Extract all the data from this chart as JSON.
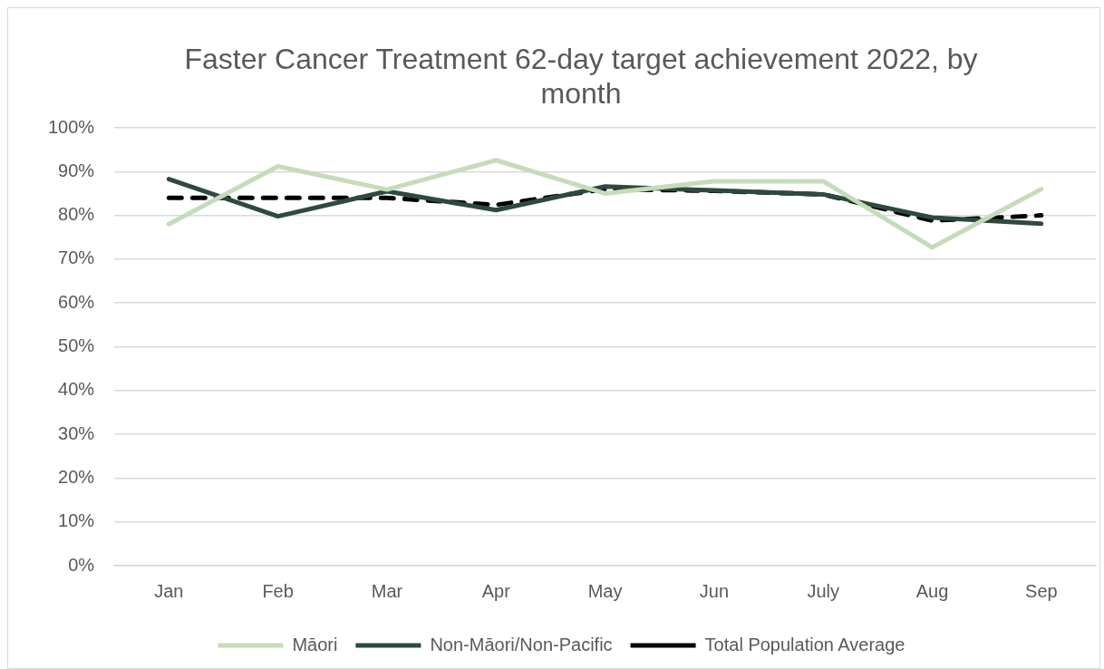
{
  "chart_data": {
    "type": "line",
    "title": "Faster Cancer Treatment 62-day target achievement 2022, by month",
    "categories": [
      "Jan",
      "Feb",
      "Mar",
      "Apr",
      "May",
      "Jun",
      "July",
      "Aug",
      "Sep"
    ],
    "series": [
      {
        "name": "Māori",
        "color": "#c5dcb9",
        "values": [
          78,
          91.2,
          85.9,
          92.6,
          85,
          87.8,
          87.8,
          72.7,
          86
        ]
      },
      {
        "name": "Non-Māori/Non-Pacific",
        "color": "#2e4a3e",
        "values": [
          88.3,
          79.8,
          85.5,
          81.2,
          86.6,
          85.7,
          84.8,
          79.5,
          78.1
        ]
      },
      {
        "name": "Total Population Average",
        "color": "#000000",
        "line_style": "dashed",
        "values": [
          84,
          84,
          84,
          82.4,
          86,
          85.6,
          84.8,
          78.8,
          80
        ]
      }
    ],
    "ylim": [
      0,
      100
    ],
    "yticks": [
      {
        "value": 0,
        "label": "0%"
      },
      {
        "value": 10,
        "label": "10%"
      },
      {
        "value": 20,
        "label": "20%"
      },
      {
        "value": 30,
        "label": "30%"
      },
      {
        "value": 40,
        "label": "40%"
      },
      {
        "value": 50,
        "label": "50%"
      },
      {
        "value": 60,
        "label": "60%"
      },
      {
        "value": 70,
        "label": "70%"
      },
      {
        "value": 80,
        "label": "80%"
      },
      {
        "value": 90,
        "label": "90%"
      },
      {
        "value": 100,
        "label": "100%"
      }
    ],
    "grid": "y",
    "legend": "bottom",
    "marker": "none"
  }
}
